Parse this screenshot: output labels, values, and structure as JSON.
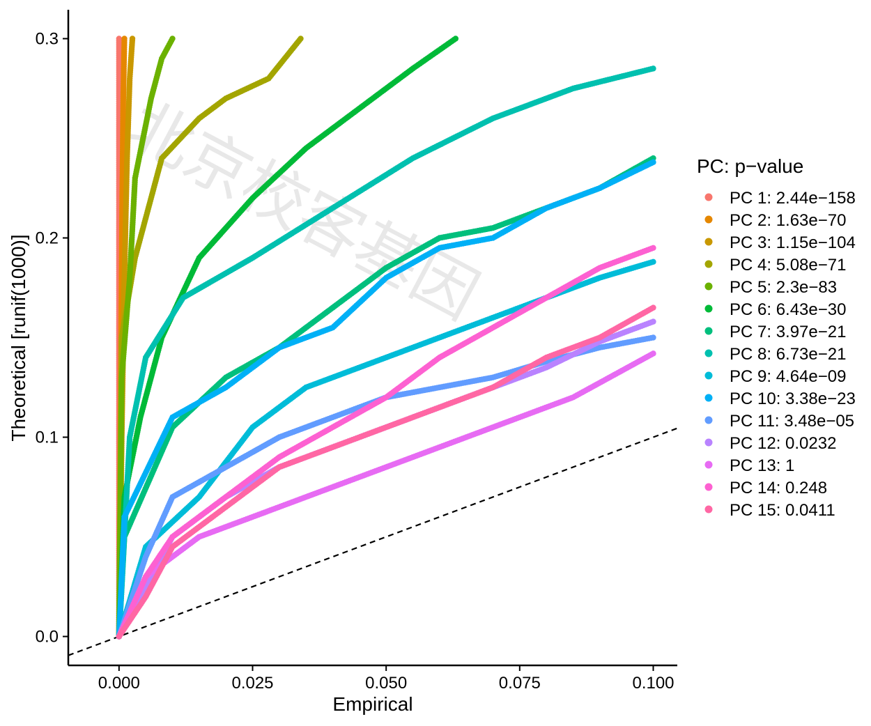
{
  "watermark": "北京校客基因",
  "chart_data": {
    "type": "scatter",
    "xlabel": "Empirical",
    "ylabel": "Theoretical [runif(1000)]",
    "xlim": [
      -0.0095,
      0.1045
    ],
    "ylim": [
      -0.0145,
      0.3145
    ],
    "x_ticks": [
      0.0,
      0.025,
      0.05,
      0.075,
      0.1
    ],
    "x_tick_labels": [
      "0.000",
      "0.025",
      "0.050",
      "0.075",
      "0.100"
    ],
    "y_ticks": [
      0.0,
      0.1,
      0.2,
      0.3
    ],
    "y_tick_labels": [
      "0.0",
      "0.1",
      "0.2",
      "0.3"
    ],
    "reference_line": {
      "slope": 1,
      "intercept": 0,
      "style": "dashed",
      "color": "#000000"
    },
    "legend": {
      "title": "PC: p−value",
      "position": "right"
    },
    "grid": false,
    "series": [
      {
        "name": "PC 1: 2.44e−158",
        "color": "#F8766D",
        "x": [
          0.0,
          0.0,
          0.0,
          0.0,
          0.0,
          0.0
        ],
        "y": [
          0.0,
          0.06,
          0.12,
          0.18,
          0.24,
          0.3
        ]
      },
      {
        "name": "PC 2: 1.63e−70",
        "color": "#E58700",
        "x": [
          0.0,
          0.0002,
          0.0004,
          0.0006,
          0.0008,
          0.001
        ],
        "y": [
          0.0,
          0.06,
          0.15,
          0.22,
          0.27,
          0.3
        ]
      },
      {
        "name": "PC 3: 1.15e−104",
        "color": "#C99800",
        "x": [
          0.0,
          0.0005,
          0.001,
          0.0015,
          0.002,
          0.0025
        ],
        "y": [
          0.0,
          0.1,
          0.18,
          0.24,
          0.28,
          0.3
        ]
      },
      {
        "name": "PC 4: 5.08e−71",
        "color": "#A3A500",
        "x": [
          0.0,
          0.0005,
          0.003,
          0.008,
          0.015,
          0.02,
          0.028,
          0.034
        ],
        "y": [
          0.0,
          0.15,
          0.19,
          0.24,
          0.26,
          0.27,
          0.28,
          0.3
        ]
      },
      {
        "name": "PC 5: 2.3e−83",
        "color": "#6BB100",
        "x": [
          0.0,
          0.0005,
          0.002,
          0.003,
          0.006,
          0.008,
          0.01
        ],
        "y": [
          0.0,
          0.13,
          0.18,
          0.23,
          0.27,
          0.29,
          0.3
        ]
      },
      {
        "name": "PC 6: 6.43e−30",
        "color": "#00BA38",
        "x": [
          0.0,
          0.001,
          0.004,
          0.008,
          0.015,
          0.025,
          0.035,
          0.045,
          0.055,
          0.063
        ],
        "y": [
          0.0,
          0.07,
          0.11,
          0.15,
          0.19,
          0.22,
          0.245,
          0.265,
          0.285,
          0.3
        ]
      },
      {
        "name": "PC 7: 3.97e−21",
        "color": "#00BF7D",
        "x": [
          0.0,
          0.001,
          0.01,
          0.02,
          0.03,
          0.04,
          0.05,
          0.06,
          0.07,
          0.08,
          0.09,
          0.1
        ],
        "y": [
          0.0,
          0.05,
          0.105,
          0.13,
          0.145,
          0.165,
          0.185,
          0.2,
          0.205,
          0.215,
          0.225,
          0.24
        ]
      },
      {
        "name": "PC 8: 6.73e−21",
        "color": "#00C0AF",
        "x": [
          0.0,
          0.002,
          0.005,
          0.012,
          0.025,
          0.04,
          0.055,
          0.07,
          0.085,
          0.1
        ],
        "y": [
          0.0,
          0.1,
          0.14,
          0.17,
          0.19,
          0.215,
          0.24,
          0.26,
          0.275,
          0.285
        ]
      },
      {
        "name": "PC 9: 4.64e−09",
        "color": "#00BCD8",
        "x": [
          0.0,
          0.005,
          0.015,
          0.025,
          0.035,
          0.05,
          0.065,
          0.08,
          0.09,
          0.1
        ],
        "y": [
          0.0,
          0.045,
          0.07,
          0.105,
          0.125,
          0.14,
          0.155,
          0.17,
          0.18,
          0.188
        ]
      },
      {
        "name": "PC 10: 3.38e−23",
        "color": "#00B0F6",
        "x": [
          0.0,
          0.001,
          0.01,
          0.02,
          0.03,
          0.04,
          0.05,
          0.06,
          0.07,
          0.08,
          0.09,
          0.1
        ],
        "y": [
          0.0,
          0.06,
          0.11,
          0.125,
          0.145,
          0.155,
          0.18,
          0.195,
          0.2,
          0.215,
          0.225,
          0.238
        ]
      },
      {
        "name": "PC 11: 3.48e−05",
        "color": "#619CFF",
        "x": [
          0.0,
          0.005,
          0.01,
          0.02,
          0.03,
          0.04,
          0.05,
          0.06,
          0.07,
          0.08,
          0.09,
          0.1
        ],
        "y": [
          0.0,
          0.04,
          0.07,
          0.085,
          0.1,
          0.11,
          0.12,
          0.125,
          0.13,
          0.138,
          0.145,
          0.15
        ]
      },
      {
        "name": "PC 12: 0.0232",
        "color": "#B983FF",
        "x": [
          0.0,
          0.01,
          0.02,
          0.03,
          0.04,
          0.05,
          0.06,
          0.07,
          0.08,
          0.09,
          0.1
        ],
        "y": [
          0.0,
          0.05,
          0.07,
          0.085,
          0.095,
          0.105,
          0.115,
          0.125,
          0.135,
          0.148,
          0.158
        ]
      },
      {
        "name": "PC 13: 1",
        "color": "#E76BF3",
        "x": [
          0.0,
          0.005,
          0.015,
          0.025,
          0.035,
          0.045,
          0.055,
          0.065,
          0.075,
          0.085,
          0.1
        ],
        "y": [
          0.0,
          0.03,
          0.05,
          0.06,
          0.07,
          0.08,
          0.09,
          0.1,
          0.11,
          0.12,
          0.142
        ]
      },
      {
        "name": "PC 14: 0.248",
        "color": "#FD61D1",
        "x": [
          0.0,
          0.005,
          0.01,
          0.02,
          0.03,
          0.04,
          0.05,
          0.06,
          0.07,
          0.08,
          0.09,
          0.1
        ],
        "y": [
          0.0,
          0.03,
          0.05,
          0.07,
          0.09,
          0.105,
          0.12,
          0.14,
          0.155,
          0.17,
          0.185,
          0.195
        ]
      },
      {
        "name": "PC 15: 0.0411",
        "color": "#FF67A4",
        "x": [
          0.0,
          0.005,
          0.01,
          0.02,
          0.03,
          0.04,
          0.05,
          0.06,
          0.07,
          0.08,
          0.09,
          0.1
        ],
        "y": [
          0.0,
          0.02,
          0.045,
          0.065,
          0.085,
          0.095,
          0.105,
          0.115,
          0.125,
          0.14,
          0.15,
          0.165
        ]
      }
    ]
  }
}
